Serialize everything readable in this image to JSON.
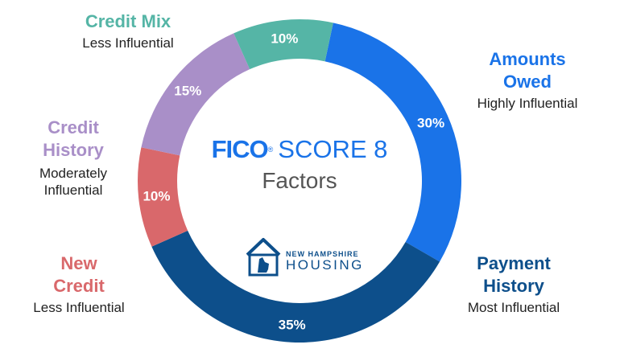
{
  "chart_data": {
    "type": "pie",
    "title": "FICO SCORE 8 Factors",
    "slices": [
      {
        "name": "Amounts Owed",
        "value": 30,
        "label": "30%",
        "influence": "Highly Influential",
        "color": "#1a73e8"
      },
      {
        "name": "Payment History",
        "value": 35,
        "label": "35%",
        "influence": "Most Influential",
        "color": "#0d4f8b"
      },
      {
        "name": "New Credit",
        "value": 10,
        "label": "10%",
        "influence": "Less Influential",
        "color": "#d9686b"
      },
      {
        "name": "Credit History",
        "value": 15,
        "label": "15%",
        "influence": "Moderately Influential",
        "color": "#a98fc8"
      },
      {
        "name": "Credit Mix",
        "value": 10,
        "label": "10%",
        "influence": "Less Influential",
        "color": "#55b5a6"
      }
    ]
  },
  "center": {
    "brand": "FICO",
    "registered_mark": "®",
    "score_label": "SCORE 8",
    "subtitle": "Factors",
    "brand_color": "#1a73e8"
  },
  "labels": {
    "credit_mix": {
      "name": "Credit Mix",
      "influence": "Less Influential",
      "color": "#55b5a6"
    },
    "amounts_owed": {
      "name_line1": "Amounts",
      "name_line2": "Owed",
      "influence": "Highly Influential",
      "color": "#1a73e8"
    },
    "credit_history": {
      "name_line1": "Credit",
      "name_line2": "History",
      "influence_line1": "Moderately",
      "influence_line2": "Influential",
      "color": "#a98fc8"
    },
    "new_credit": {
      "name_line1": "New",
      "name_line2": "Credit",
      "influence": "Less Influential",
      "color": "#d9686b"
    },
    "payment_history": {
      "name_line1": "Payment",
      "name_line2": "History",
      "influence": "Most Influential",
      "color": "#0d4f8b"
    }
  },
  "logo": {
    "line1": "NEW HAMPSHIRE",
    "line2": "HOUSING",
    "color": "#0d4f8b",
    "icon": "new-hampshire-house-icon"
  }
}
